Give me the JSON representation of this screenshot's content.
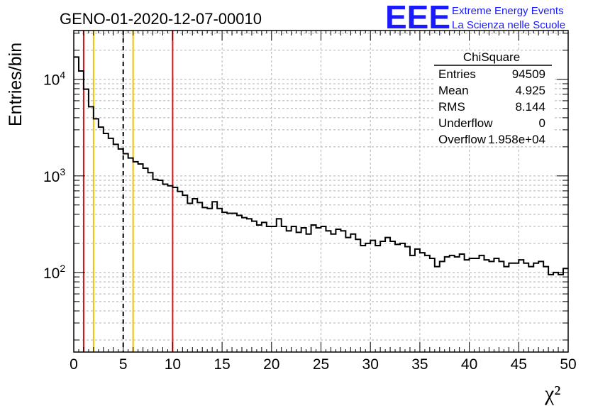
{
  "header": {
    "title": "GENO-01-2020-12-07-00010",
    "logo_text": "EEE",
    "logo_line1": "Extreme Energy Events",
    "logo_line2": "La Scienza nelle Scuole"
  },
  "stats": {
    "title": "ChiSquare",
    "rows": [
      {
        "label": "Entries",
        "value": "94509"
      },
      {
        "label": "Mean",
        "value": "4.925"
      },
      {
        "label": "RMS",
        "value": "8.144"
      },
      {
        "label": "Underflow",
        "value": "0"
      },
      {
        "label": "Overflow",
        "value": "1.958e+04"
      }
    ]
  },
  "chart_data": {
    "type": "histogram",
    "xlabel": "χ²",
    "ylabel": "Entries/bin",
    "xlim": [
      0,
      50
    ],
    "ylim": [
      15,
      32000
    ],
    "yscale": "log",
    "grid": true,
    "legend": "top-right",
    "bin_width": 0.5,
    "x_ticks": [
      0,
      5,
      10,
      15,
      20,
      25,
      30,
      35,
      40,
      45,
      50
    ],
    "x_tick_labels": [
      "0",
      "5",
      "10",
      "15",
      "20",
      "25",
      "30",
      "35",
      "40",
      "45",
      "50"
    ],
    "y_tick_labels": [
      {
        "value": 100,
        "base": "10",
        "exp": "2"
      },
      {
        "value": 1000,
        "base": "10",
        "exp": "3"
      },
      {
        "value": 10000,
        "base": "10",
        "exp": "4"
      }
    ],
    "values": [
      17000,
      12200,
      7900,
      5200,
      3900,
      3200,
      2750,
      2450,
      2120,
      1900,
      1700,
      1530,
      1400,
      1330,
      1200,
      1080,
      920,
      900,
      820,
      790,
      760,
      690,
      630,
      520,
      580,
      530,
      470,
      460,
      540,
      460,
      420,
      410,
      410,
      390,
      370,
      360,
      340,
      310,
      330,
      300,
      300,
      360,
      300,
      270,
      300,
      260,
      290,
      250,
      310,
      290,
      300,
      270,
      250,
      280,
      270,
      230,
      250,
      220,
      190,
      200,
      215,
      190,
      210,
      230,
      210,
      195,
      200,
      185,
      150,
      175,
      160,
      150,
      140,
      115,
      130,
      145,
      150,
      145,
      155,
      135,
      140,
      140,
      150,
      135,
      130,
      140,
      130,
      115,
      125,
      125,
      135,
      125,
      115,
      125,
      130,
      115,
      95,
      100,
      95,
      110
    ],
    "markers": [
      {
        "x": 1,
        "color": "#dd1111",
        "style": "solid"
      },
      {
        "x": 2,
        "color": "#f2c200",
        "style": "solid"
      },
      {
        "x": 5,
        "color": "#000000",
        "style": "dashed"
      },
      {
        "x": 6,
        "color": "#f2c200",
        "style": "solid"
      },
      {
        "x": 10,
        "color": "#dd1111",
        "style": "solid"
      }
    ]
  }
}
